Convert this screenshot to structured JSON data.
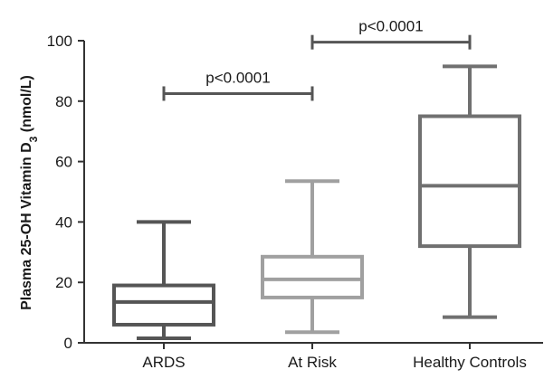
{
  "chart_data": {
    "type": "box",
    "title": "",
    "xlabel": "",
    "ylabel": {
      "main": "Plasma 25-OH Vitamin D",
      "subscript": "3",
      "unit": " (nmol/L)"
    },
    "ylim": [
      0,
      100
    ],
    "yticks": [
      0,
      20,
      40,
      60,
      80,
      100
    ],
    "grid": false,
    "categories": [
      "ARDS",
      "At Risk",
      "Healthy Controls"
    ],
    "boxes": [
      {
        "category": "ARDS",
        "min": 1.5,
        "q1": 6,
        "median": 13.5,
        "q3": 19,
        "max": 40,
        "color": "#555555"
      },
      {
        "category": "At Risk",
        "min": 3.5,
        "q1": 15,
        "median": 21,
        "q3": 28.5,
        "max": 53.5,
        "color": "#a0a0a0"
      },
      {
        "category": "Healthy Controls",
        "min": 8.5,
        "q1": 32,
        "median": 52,
        "q3": 75,
        "max": 91.5,
        "color": "#707070"
      }
    ],
    "annotations": [
      {
        "from": "ARDS",
        "to": "At Risk",
        "y": 82.5,
        "label": "p<0.0001"
      },
      {
        "from": "At Risk",
        "to": "Healthy Controls",
        "y": 99.5,
        "label": "p<0.0001"
      }
    ]
  }
}
